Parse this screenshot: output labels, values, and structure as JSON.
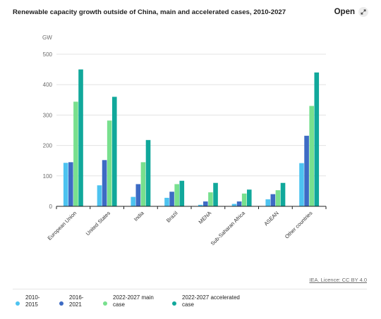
{
  "header": {
    "title": "Renewable capacity growth outside of China, main and accelerated cases, 2010-2027",
    "open_label": "Open"
  },
  "colors": {
    "background": "#ffffff",
    "axis": "#1f1f1f",
    "grid": "#e3e3e3"
  },
  "chart_data": {
    "type": "bar",
    "title": "Renewable capacity growth outside of China, main and accelerated cases, 2010-2027",
    "ylabel": "GW",
    "xlabel": "",
    "ylim": [
      0,
      500
    ],
    "yticks": [
      0,
      100,
      200,
      300,
      400,
      500
    ],
    "grid": true,
    "legend_position": "bottom",
    "categories": [
      "European Union",
      "United States",
      "India",
      "Brazil",
      "MENA",
      "Sub-Saharan Africa",
      "ASEAN",
      "Other countries"
    ],
    "series": [
      {
        "name": "2010-2015",
        "color": "#4dc3f0",
        "values": [
          143,
          69,
          31,
          28,
          5,
          8,
          23,
          142
        ]
      },
      {
        "name": "2016-2021",
        "color": "#3d6bc4",
        "values": [
          145,
          152,
          73,
          48,
          16,
          16,
          40,
          232
        ]
      },
      {
        "name": "2022-2027 main case",
        "color": "#78e08e",
        "values": [
          344,
          282,
          145,
          73,
          46,
          42,
          53,
          330
        ]
      },
      {
        "name": "2022-2027 accelerated case",
        "color": "#11a89b",
        "values": [
          450,
          360,
          218,
          84,
          77,
          55,
          77,
          440
        ]
      }
    ]
  },
  "footer": {
    "credit": "IEA. Licence: CC BY 4.0"
  }
}
